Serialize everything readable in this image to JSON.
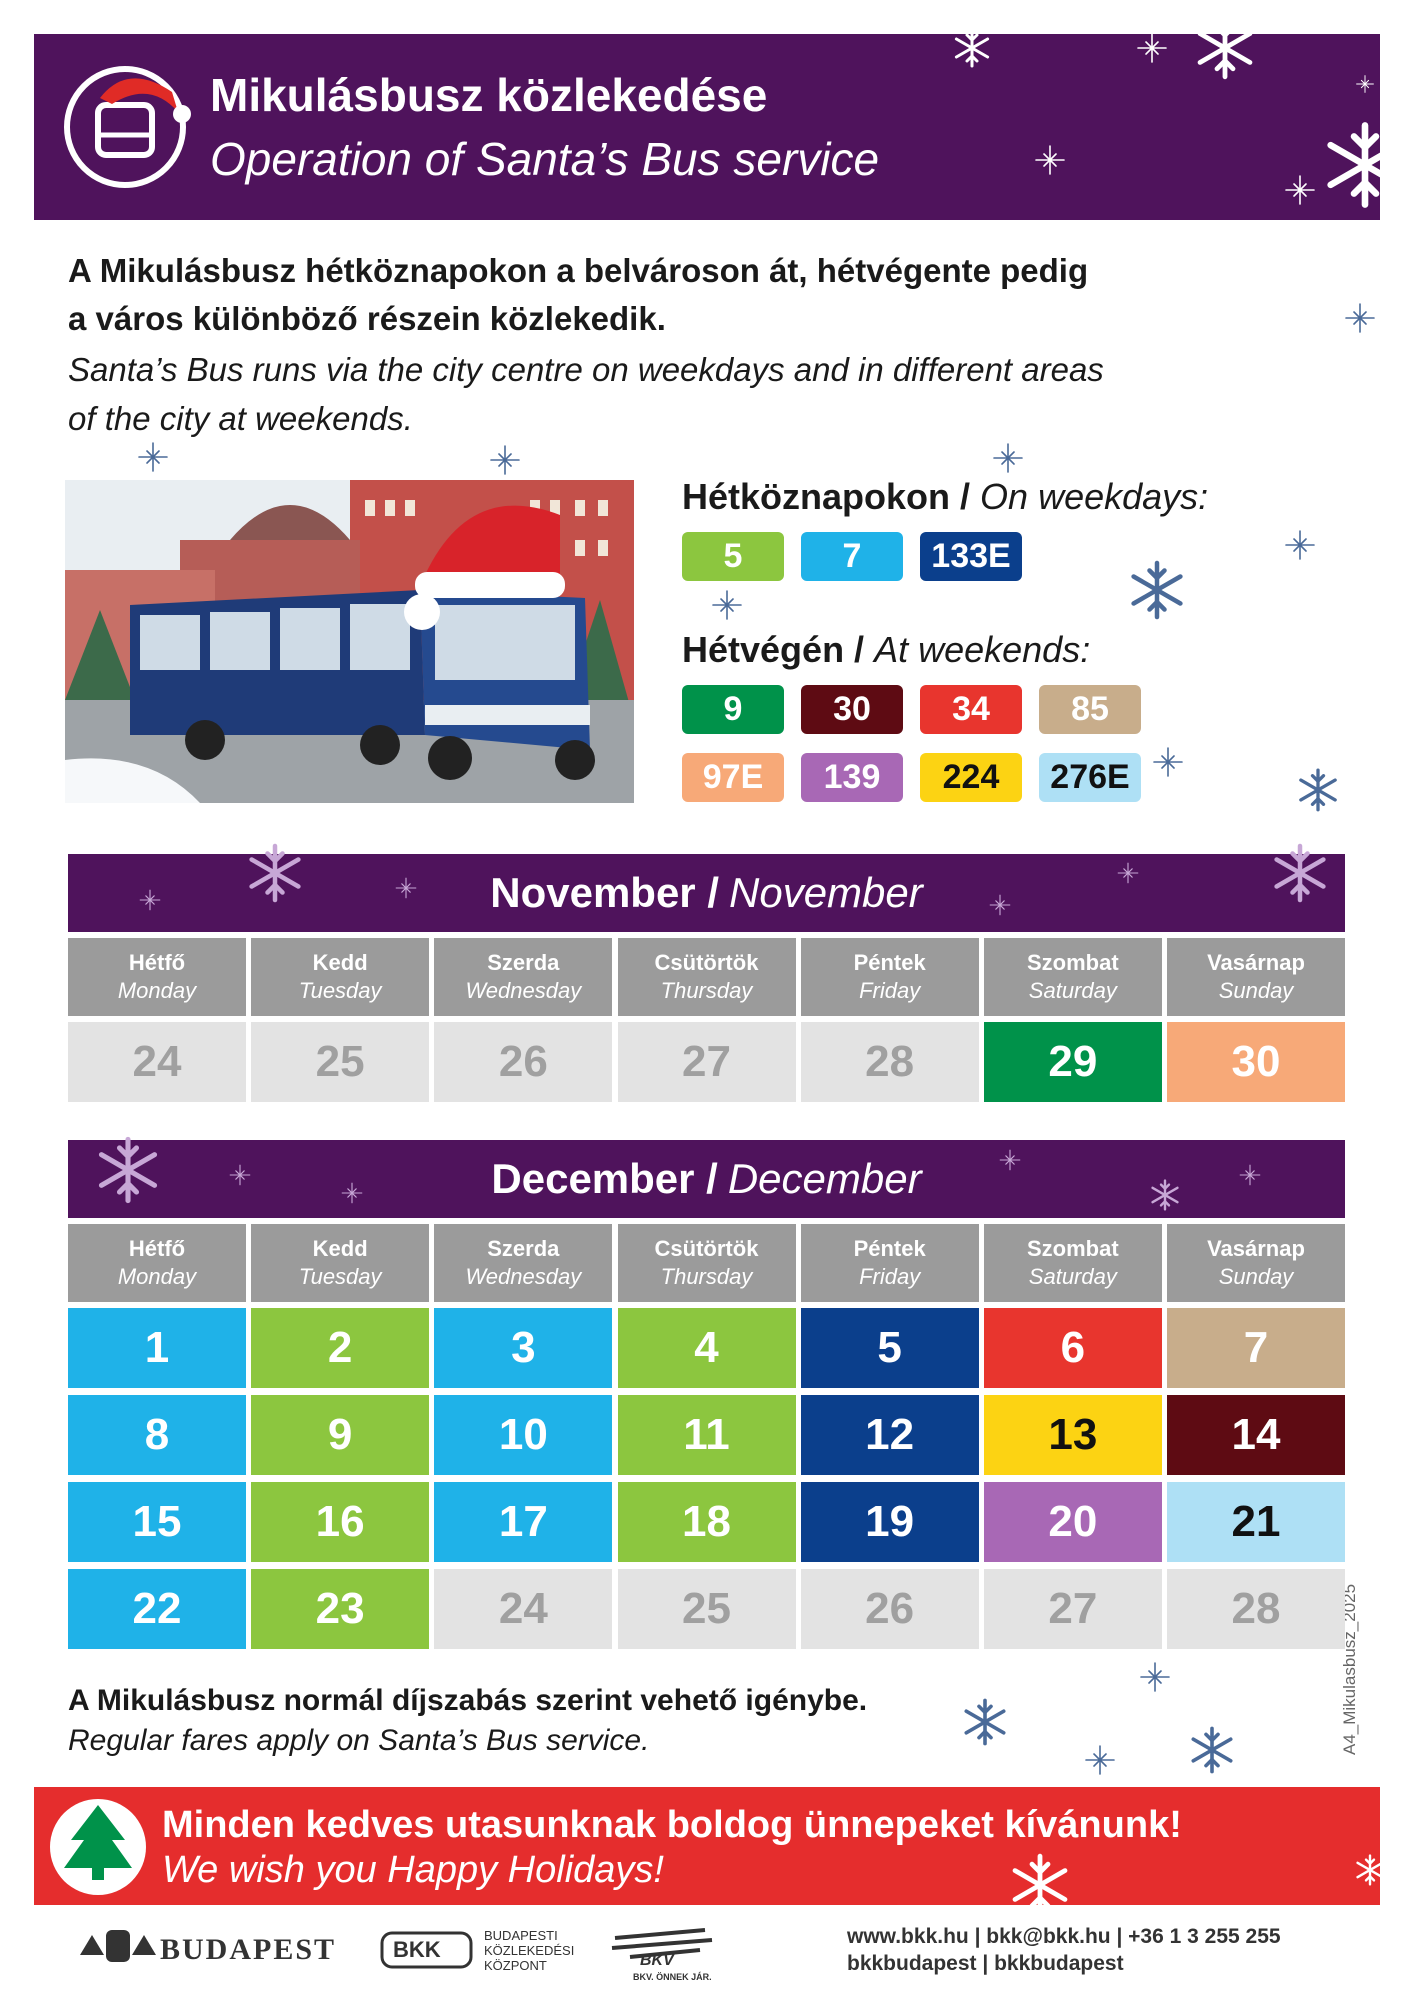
{
  "header": {
    "title": "Mikulásbusz közlekedése",
    "subtitle": "Operation of Santa’s Bus service"
  },
  "intro": {
    "hu": [
      "A Mikulásbusz hétköznapokon a belvároson át, hétvégente pedig",
      "a város különböző részein közlekedik."
    ],
    "en": [
      "Santa’s Bus runs via the city centre on weekdays and in different areas",
      "of the city at weekends."
    ]
  },
  "routes": {
    "weekdays": {
      "hu": "Hétköznapokon /",
      "en": "On weekdays:",
      "lines": [
        {
          "label": "5",
          "bg": "#8cc63f",
          "fg": "#ffffff"
        },
        {
          "label": "7",
          "bg": "#1fb2e8",
          "fg": "#ffffff"
        },
        {
          "label": "133E",
          "bg": "#0b3f8c",
          "fg": "#ffffff"
        }
      ]
    },
    "weekends": {
      "hu": "Hétvégén /",
      "en": "At weekends:",
      "lines": [
        {
          "label": "9",
          "bg": "#00924a",
          "fg": "#ffffff"
        },
        {
          "label": "30",
          "bg": "#5e0b13",
          "fg": "#ffffff"
        },
        {
          "label": "34",
          "bg": "#e8352e",
          "fg": "#ffffff"
        },
        {
          "label": "85",
          "bg": "#c8ad8b",
          "fg": "#ffffff"
        },
        {
          "label": "97E",
          "bg": "#f7a978",
          "fg": "#ffffff"
        },
        {
          "label": "139",
          "bg": "#a868b5",
          "fg": "#ffffff"
        },
        {
          "label": "224",
          "bg": "#fcd313",
          "fg": "#111111"
        },
        {
          "label": "276E",
          "bg": "#aee0f5",
          "fg": "#111111"
        }
      ]
    }
  },
  "day_names": [
    {
      "hu": "Hétfő",
      "en": "Monday"
    },
    {
      "hu": "Kedd",
      "en": "Tuesday"
    },
    {
      "hu": "Szerda",
      "en": "Wednesday"
    },
    {
      "hu": "Csütörtök",
      "en": "Thursday"
    },
    {
      "hu": "Péntek",
      "en": "Friday"
    },
    {
      "hu": "Szombat",
      "en": "Saturday"
    },
    {
      "hu": "Vasárnap",
      "en": "Sunday"
    }
  ],
  "calendars": [
    {
      "hu": "November /",
      "en": "November",
      "weeks": [
        [
          {
            "day": 24,
            "bg": "#e3e3e3",
            "fg": "#a0a0a0"
          },
          {
            "day": 25,
            "bg": "#e3e3e3",
            "fg": "#a0a0a0"
          },
          {
            "day": 26,
            "bg": "#e3e3e3",
            "fg": "#a0a0a0"
          },
          {
            "day": 27,
            "bg": "#e3e3e3",
            "fg": "#a0a0a0"
          },
          {
            "day": 28,
            "bg": "#e3e3e3",
            "fg": "#a0a0a0"
          },
          {
            "day": 29,
            "bg": "#00924a",
            "fg": "#ffffff"
          },
          {
            "day": 30,
            "bg": "#f7a978",
            "fg": "#ffffff"
          }
        ]
      ]
    },
    {
      "hu": "December /",
      "en": "December",
      "weeks": [
        [
          {
            "day": 1,
            "bg": "#1fb2e8",
            "fg": "#ffffff"
          },
          {
            "day": 2,
            "bg": "#8cc63f",
            "fg": "#ffffff"
          },
          {
            "day": 3,
            "bg": "#1fb2e8",
            "fg": "#ffffff"
          },
          {
            "day": 4,
            "bg": "#8cc63f",
            "fg": "#ffffff"
          },
          {
            "day": 5,
            "bg": "#0b3f8c",
            "fg": "#ffffff"
          },
          {
            "day": 6,
            "bg": "#e8352e",
            "fg": "#ffffff"
          },
          {
            "day": 7,
            "bg": "#c8ad8b",
            "fg": "#ffffff"
          }
        ],
        [
          {
            "day": 8,
            "bg": "#1fb2e8",
            "fg": "#ffffff"
          },
          {
            "day": 9,
            "bg": "#8cc63f",
            "fg": "#ffffff"
          },
          {
            "day": 10,
            "bg": "#1fb2e8",
            "fg": "#ffffff"
          },
          {
            "day": 11,
            "bg": "#8cc63f",
            "fg": "#ffffff"
          },
          {
            "day": 12,
            "bg": "#0b3f8c",
            "fg": "#ffffff"
          },
          {
            "day": 13,
            "bg": "#fcd313",
            "fg": "#111111"
          },
          {
            "day": 14,
            "bg": "#5e0b13",
            "fg": "#ffffff"
          }
        ],
        [
          {
            "day": 15,
            "bg": "#1fb2e8",
            "fg": "#ffffff"
          },
          {
            "day": 16,
            "bg": "#8cc63f",
            "fg": "#ffffff"
          },
          {
            "day": 17,
            "bg": "#1fb2e8",
            "fg": "#ffffff"
          },
          {
            "day": 18,
            "bg": "#8cc63f",
            "fg": "#ffffff"
          },
          {
            "day": 19,
            "bg": "#0b3f8c",
            "fg": "#ffffff"
          },
          {
            "day": 20,
            "bg": "#a868b5",
            "fg": "#ffffff"
          },
          {
            "day": 21,
            "bg": "#aee0f5",
            "fg": "#111111"
          }
        ],
        [
          {
            "day": 22,
            "bg": "#1fb2e8",
            "fg": "#ffffff"
          },
          {
            "day": 23,
            "bg": "#8cc63f",
            "fg": "#ffffff"
          },
          {
            "day": 24,
            "bg": "#e3e3e3",
            "fg": "#a0a0a0"
          },
          {
            "day": 25,
            "bg": "#e3e3e3",
            "fg": "#a0a0a0"
          },
          {
            "day": 26,
            "bg": "#e3e3e3",
            "fg": "#a0a0a0"
          },
          {
            "day": 27,
            "bg": "#e3e3e3",
            "fg": "#a0a0a0"
          },
          {
            "day": 28,
            "bg": "#e3e3e3",
            "fg": "#a0a0a0"
          }
        ]
      ]
    }
  ],
  "notice": {
    "hu": "A Mikulásbusz normál díjszabás szerint vehető igénybe.",
    "en": "Regular fares apply on Santa’s Bus service."
  },
  "greeting": {
    "hu": "Minden kedves utasunknak boldog ünnepeket kívánunk!",
    "en": "We wish you Happy Holidays!"
  },
  "footer": {
    "city": "BUDAPEST",
    "bkk": "BKK",
    "bkk_name": [
      "BUDAPESTI",
      "KÖZLEKEDÉSI",
      "KÖZPONT"
    ],
    "bkv": "BKV",
    "bkv_slogan": "BKV. ÖNNEK JÁR.",
    "contact": [
      "www.bkk.hu | bkk@bkk.hu | +36 1 3 255 255",
      "bkkbudapest | bkkbudapest"
    ]
  },
  "code": "A4_Mikulasbusz_2025"
}
